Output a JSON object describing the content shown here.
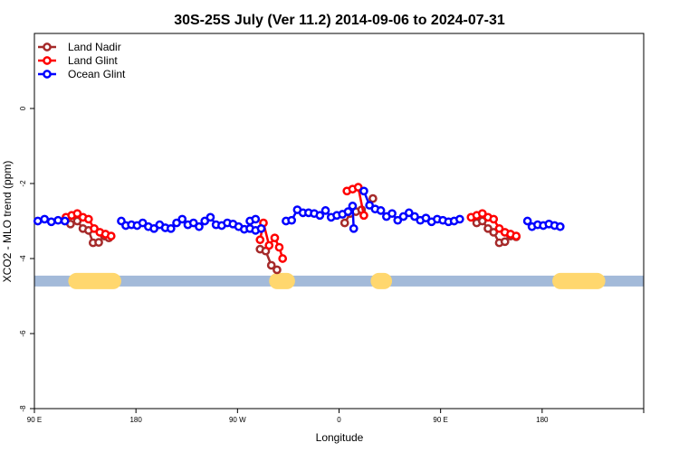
{
  "chart_data": {
    "type": "line",
    "title": "30S-25S July (Ver 11.2)   2014-09-06 to 2024-07-31",
    "xlabel": "Longitude",
    "ylabel": "XCO2 - MLO trend (ppm)",
    "xlim": [
      0,
      540
    ],
    "ylim": [
      -8,
      2
    ],
    "x_ticks": [
      {
        "pos": 0,
        "label": "90 E"
      },
      {
        "pos": 90,
        "label": "180"
      },
      {
        "pos": 180,
        "label": "90 W"
      },
      {
        "pos": 270,
        "label": "0"
      },
      {
        "pos": 360,
        "label": "90 E"
      },
      {
        "pos": 450,
        "label": "180"
      }
    ],
    "y_ticks": [
      0,
      -2,
      -4,
      -6,
      -8
    ],
    "grid": false,
    "legend_position": "top-left",
    "series": [
      {
        "name": "Land Nadir",
        "color": "#a52a2a",
        "segments": [
          [
            [
              32,
              -3.08
            ],
            [
              38,
              -3.0
            ],
            [
              43,
              -3.2
            ],
            [
              48,
              -3.25
            ],
            [
              52,
              -3.58
            ],
            [
              57,
              -3.57
            ],
            [
              62,
              -3.4
            ],
            [
              66,
              -3.45
            ]
          ],
          [
            [
              200,
              -3.75
            ],
            [
              205,
              -3.8
            ],
            [
              210,
              -4.18
            ],
            [
              215,
              -4.3
            ]
          ],
          [
            [
              275,
              -3.05
            ],
            [
              280,
              -2.8
            ],
            [
              285,
              -2.75
            ],
            [
              290,
              -2.7
            ]
          ],
          [
            [
              300,
              -2.4
            ]
          ],
          [
            [
              392,
              -3.05
            ],
            [
              397,
              -3.0
            ],
            [
              402,
              -3.2
            ],
            [
              407,
              -3.3
            ],
            [
              412,
              -3.58
            ],
            [
              417,
              -3.55
            ],
            [
              422,
              -3.4
            ],
            [
              427,
              -3.42
            ]
          ]
        ]
      },
      {
        "name": "Land Glint",
        "color": "#ff0000",
        "segments": [
          [
            [
              28,
              -2.9
            ],
            [
              33,
              -2.85
            ],
            [
              38,
              -2.8
            ],
            [
              43,
              -2.9
            ],
            [
              48,
              -2.95
            ],
            [
              53,
              -3.2
            ],
            [
              58,
              -3.3
            ],
            [
              63,
              -3.35
            ],
            [
              68,
              -3.4
            ]
          ],
          [
            [
              200,
              -3.5
            ],
            [
              203,
              -3.05
            ],
            [
              208,
              -3.65
            ],
            [
              213,
              -3.45
            ],
            [
              217,
              -3.7
            ],
            [
              220,
              -4.0
            ]
          ],
          [
            [
              277,
              -2.2
            ],
            [
              282,
              -2.15
            ],
            [
              287,
              -2.1
            ],
            [
              292,
              -2.85
            ]
          ],
          [
            [
              387,
              -2.9
            ],
            [
              392,
              -2.85
            ],
            [
              397,
              -2.8
            ],
            [
              402,
              -2.9
            ],
            [
              407,
              -2.95
            ],
            [
              412,
              -3.2
            ],
            [
              417,
              -3.3
            ],
            [
              422,
              -3.35
            ],
            [
              427,
              -3.4
            ]
          ]
        ]
      },
      {
        "name": "Ocean Glint",
        "color": "#0000ff",
        "segments": [
          [
            [
              3,
              -3.0
            ],
            [
              9,
              -2.95
            ],
            [
              15,
              -3.02
            ],
            [
              21,
              -2.98
            ],
            [
              27,
              -3.0
            ]
          ],
          [
            [
              77,
              -3.0
            ],
            [
              81,
              -3.12
            ],
            [
              86,
              -3.1
            ],
            [
              91,
              -3.12
            ],
            [
              96,
              -3.05
            ],
            [
              101,
              -3.15
            ],
            [
              106,
              -3.2
            ],
            [
              111,
              -3.1
            ],
            [
              116,
              -3.18
            ],
            [
              121,
              -3.2
            ],
            [
              126,
              -3.05
            ],
            [
              131,
              -2.95
            ],
            [
              136,
              -3.1
            ],
            [
              141,
              -3.05
            ],
            [
              146,
              -3.15
            ],
            [
              151,
              -3.0
            ],
            [
              156,
              -2.9
            ],
            [
              161,
              -3.1
            ],
            [
              166,
              -3.12
            ],
            [
              171,
              -3.05
            ],
            [
              176,
              -3.08
            ],
            [
              181,
              -3.15
            ],
            [
              186,
              -3.22
            ],
            [
              191,
              -3.2
            ],
            [
              196,
              -3.25
            ],
            [
              201,
              -3.2
            ]
          ],
          [
            [
              191,
              -3.0
            ],
            [
              196,
              -2.95
            ]
          ],
          [
            [
              223,
              -3.0
            ],
            [
              228,
              -2.98
            ],
            [
              233,
              -2.7
            ],
            [
              238,
              -2.78
            ],
            [
              243,
              -2.78
            ],
            [
              248,
              -2.8
            ],
            [
              253,
              -2.85
            ],
            [
              258,
              -2.72
            ],
            [
              263,
              -2.9
            ],
            [
              268,
              -2.85
            ],
            [
              273,
              -2.82
            ],
            [
              278,
              -2.75
            ],
            [
              282,
              -2.6
            ],
            [
              283,
              -3.2
            ]
          ],
          [
            [
              292,
              -2.2
            ],
            [
              297,
              -2.58
            ],
            [
              302,
              -2.68
            ],
            [
              307,
              -2.72
            ],
            [
              312,
              -2.88
            ],
            [
              317,
              -2.8
            ],
            [
              322,
              -2.98
            ],
            [
              327,
              -2.88
            ],
            [
              332,
              -2.78
            ],
            [
              337,
              -2.88
            ],
            [
              342,
              -2.98
            ],
            [
              347,
              -2.92
            ],
            [
              352,
              -3.02
            ],
            [
              357,
              -2.95
            ],
            [
              362,
              -2.98
            ],
            [
              367,
              -3.02
            ],
            [
              372,
              -3.0
            ],
            [
              377,
              -2.95
            ]
          ],
          [
            [
              437,
              -3.0
            ],
            [
              441,
              -3.15
            ],
            [
              446,
              -3.1
            ],
            [
              451,
              -3.12
            ],
            [
              456,
              -3.08
            ],
            [
              461,
              -3.12
            ],
            [
              466,
              -3.15
            ]
          ]
        ]
      }
    ],
    "surface_strip": {
      "y": -4.6,
      "band_color": "#a3bad9",
      "land_color": "#ffd76e",
      "land_ranges": [
        [
          30,
          77
        ],
        [
          208,
          231
        ],
        [
          298,
          317
        ],
        [
          459,
          506
        ]
      ]
    }
  }
}
